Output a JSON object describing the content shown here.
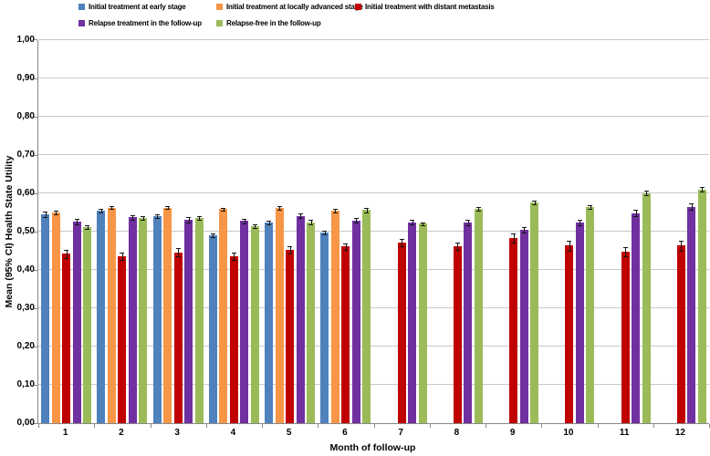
{
  "figure": {
    "background": "#ffffff",
    "grid_color": "#c9c9c9",
    "axis_color": "#898989",
    "error_bar_color": "#151515"
  },
  "chart_data": {
    "type": "bar",
    "title": "",
    "xlabel": "Month of follow-up",
    "ylabel": "Mean (95% CI) Health State Utility",
    "categories": [
      "1",
      "2",
      "3",
      "4",
      "5",
      "6",
      "7",
      "8",
      "9",
      "10",
      "11",
      "12"
    ],
    "ylim": [
      0,
      1
    ],
    "grid": true,
    "legend_position": "top",
    "yticks": {
      "values": [
        0,
        0.1,
        0.2,
        0.3,
        0.4,
        0.5,
        0.6,
        0.7,
        0.8,
        0.9,
        1.0
      ],
      "labels": [
        "0,00",
        "0,10",
        "0,20",
        "0,30",
        "0,40",
        "0,50",
        "0,60",
        "0,70",
        "0,80",
        "0,90",
        "1,00"
      ]
    },
    "series": [
      {
        "name": "Initial treatment at early stage",
        "color": "#4F81BD",
        "values": [
          0.545,
          0.555,
          0.54,
          0.49,
          0.523,
          0.498,
          null,
          null,
          null,
          null,
          null,
          null
        ],
        "errors": [
          0.007,
          0.005,
          0.005,
          0.005,
          0.005,
          0.005,
          null,
          null,
          null,
          null,
          null,
          null
        ]
      },
      {
        "name": "Initial treatment at locally advanced stage",
        "color": "#F79646",
        "values": [
          0.55,
          0.563,
          0.563,
          0.559,
          0.562,
          0.555,
          null,
          null,
          null,
          null,
          null,
          null
        ],
        "errors": [
          0.004,
          0.004,
          0.004,
          0.004,
          0.004,
          0.004,
          null,
          null,
          null,
          null,
          null,
          null
        ]
      },
      {
        "name": "Initial treatment with distant metastasis",
        "color": "#C00000",
        "values": [
          0.442,
          0.436,
          0.446,
          0.436,
          0.452,
          0.461,
          0.472,
          0.462,
          0.483,
          0.464,
          0.448,
          0.464
        ],
        "errors": [
          0.01,
          0.01,
          0.01,
          0.01,
          0.009,
          0.009,
          0.01,
          0.01,
          0.012,
          0.013,
          0.012,
          0.013
        ]
      },
      {
        "name": "Relapse treatment in the follow-up",
        "color": "#7030A0",
        "values": [
          0.527,
          0.537,
          0.53,
          0.528,
          0.541,
          0.529,
          0.524,
          0.523,
          0.505,
          0.523,
          0.548,
          0.565
        ],
        "errors": [
          0.007,
          0.006,
          0.007,
          0.006,
          0.006,
          0.006,
          0.006,
          0.007,
          0.008,
          0.007,
          0.008,
          0.008
        ]
      },
      {
        "name": "Relapse-free in the follow-up",
        "color": "#9BBB59",
        "values": [
          0.512,
          0.536,
          0.535,
          0.515,
          0.525,
          0.556,
          0.521,
          0.559,
          0.577,
          0.565,
          0.601,
          0.61
        ],
        "errors": [
          0.005,
          0.004,
          0.005,
          0.005,
          0.005,
          0.005,
          0.004,
          0.005,
          0.005,
          0.005,
          0.005,
          0.006
        ]
      }
    ]
  }
}
